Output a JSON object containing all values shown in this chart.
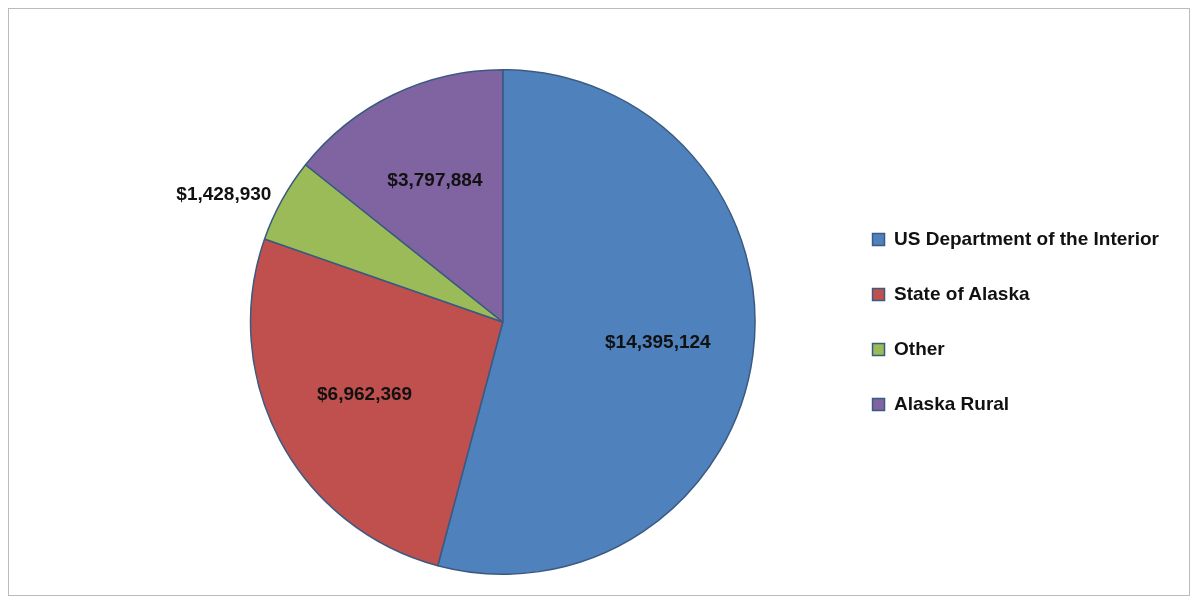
{
  "chart_data": {
    "type": "pie",
    "categories": [
      "US Department of the Interior",
      "State of Alaska",
      "Other",
      "Alaska Rural"
    ],
    "values": [
      14395124,
      6962369,
      1428930,
      3797884
    ],
    "colors": [
      "#4f81bd",
      "#c0504d",
      "#9bbb59",
      "#8064a2"
    ],
    "value_labels": [
      "$14,395,124",
      "$6,962,369",
      "$1,428,930",
      "$3,797,884"
    ],
    "legend": "right"
  }
}
